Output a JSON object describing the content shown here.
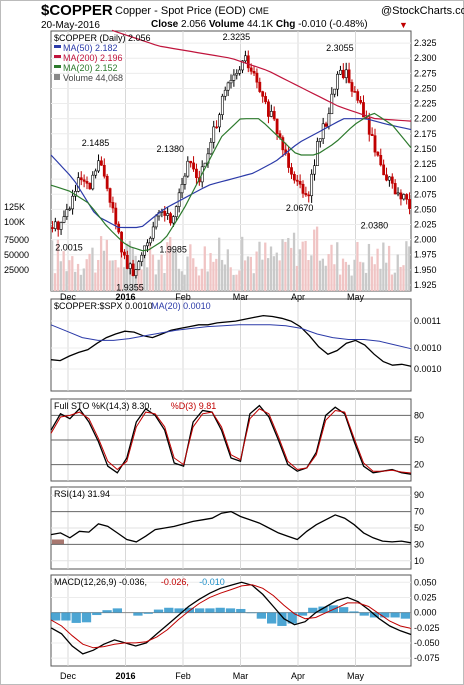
{
  "header": {
    "symbol": "$COPPER",
    "description": "Copper - Spot Price (EOD)",
    "exchange": "CME",
    "date": "20-May-2016",
    "close_label": "Close",
    "close": "2.056",
    "volume_label": "Volume",
    "volume": "44.1K",
    "chg_label": "Chg",
    "chg": "-0.010 (-0.48%)",
    "brand": "@StockCharts.com",
    "down_color": "#c00000"
  },
  "x_axis": {
    "months": [
      "Dec",
      "2016",
      "Feb",
      "Mar",
      "Apr",
      "May"
    ],
    "date_range": [
      "2015-11-24",
      "2016-05-20"
    ]
  },
  "chart_data": [
    {
      "type": "candlestick",
      "panel": "price",
      "legend": [
        {
          "label": "$COPPER (Daily) 2.056",
          "color": "#000000"
        },
        {
          "label": "MA(50) 2.182",
          "color": "#2b3aa8"
        },
        {
          "label": "MA(200) 2.196",
          "color": "#c0143c"
        },
        {
          "label": "MA(20) 2.152",
          "color": "#2d7a2d"
        },
        {
          "label": "Volume 44,068",
          "color": "#808080"
        }
      ],
      "y_ticks": [
        "2.325",
        "2.300",
        "2.275",
        "2.250",
        "2.225",
        "2.200",
        "2.175",
        "2.150",
        "2.125",
        "2.100",
        "2.075",
        "2.050",
        "2.025",
        "2.000",
        "1.975",
        "1.950",
        "1.925"
      ],
      "ylim": [
        1.915,
        2.345
      ],
      "volume_ticks": [
        "125K",
        "100K",
        "75000",
        "50000",
        "25000"
      ],
      "annotations": [
        {
          "text": "2.0015",
          "value": 2.0015,
          "month_pos": 0.1
        },
        {
          "text": "2.1485",
          "value": 2.1485,
          "month_pos": 1.0
        },
        {
          "text": "1.9355",
          "value": 1.9355,
          "month_pos": 1.6
        },
        {
          "text": "1.9985",
          "value": 1.9985,
          "month_pos": 2.35
        },
        {
          "text": "2.1380",
          "value": 2.138,
          "month_pos": 2.3
        },
        {
          "text": "2.3235",
          "value": 2.3235,
          "month_pos": 3.45
        },
        {
          "text": "2.0670",
          "value": 2.067,
          "month_pos": 4.55
        },
        {
          "text": "2.3055",
          "value": 2.3055,
          "month_pos": 5.25
        },
        {
          "text": "2.0380",
          "value": 2.038,
          "month_pos": 5.85
        }
      ],
      "close_key": [
        2.02,
        2.03,
        2.06,
        2.1,
        2.08,
        2.13,
        2.09,
        2.02,
        1.96,
        1.94,
        1.99,
        2.02,
        2.05,
        2.03,
        2.09,
        2.13,
        2.1,
        2.14,
        2.2,
        2.25,
        2.27,
        2.3,
        2.27,
        2.23,
        2.2,
        2.16,
        2.12,
        2.09,
        2.08,
        2.16,
        2.2,
        2.27,
        2.28,
        2.24,
        2.21,
        2.16,
        2.12,
        2.09,
        2.07,
        2.056
      ],
      "ma50_key": [
        2.14,
        2.1,
        2.04,
        2.02,
        2.02,
        2.05,
        2.07,
        2.09,
        2.1,
        2.11,
        2.13,
        2.16,
        2.18,
        2.2,
        2.2,
        2.19,
        2.182
      ],
      "ma200_key": [
        2.37,
        2.36,
        2.34,
        2.32,
        2.31,
        2.3,
        2.28,
        2.25,
        2.22,
        2.2,
        2.196
      ],
      "ma20_key": [
        2.09,
        2.08,
        2.06,
        2.02,
        1.99,
        1.98,
        2.0,
        2.05,
        2.11,
        2.17,
        2.2,
        2.2,
        2.17,
        2.14,
        2.14,
        2.16,
        2.19,
        2.21,
        2.19,
        2.152
      ]
    },
    {
      "type": "line",
      "panel": "ratio",
      "legend": [
        {
          "label": "$COPPER:$SPX 0.0010",
          "color": "#000000"
        },
        {
          "label": "MA(20) 0.0010",
          "color": "#2b3aa8"
        }
      ],
      "y_ticks": [
        "0.0011",
        "0.0010",
        "0.0010"
      ],
      "ylim": [
        0,
        100
      ],
      "series": [
        {
          "values": [
            34,
            33,
            38,
            42,
            45,
            52,
            58,
            62,
            65,
            64,
            60,
            58,
            62,
            66,
            68,
            70,
            72,
            72,
            74,
            75,
            76,
            78,
            80,
            82,
            81,
            79,
            76,
            70,
            60,
            48,
            40,
            44,
            52,
            55,
            50,
            40,
            32,
            28,
            29,
            27
          ]
        },
        {
          "values": [
            72,
            65,
            58,
            55,
            55,
            57,
            60,
            63,
            66,
            68,
            70,
            71,
            72,
            72,
            72,
            71,
            68,
            62,
            58,
            56,
            56,
            54,
            50,
            46
          ]
        }
      ]
    },
    {
      "type": "line",
      "panel": "stochastic",
      "legend": [
        {
          "label": "Full STO %K(14,3) 8.30,",
          "color": "#000000"
        },
        {
          "label": "%D(3) 9.81",
          "color": "#c00000"
        }
      ],
      "y_ticks": [
        "80",
        "50",
        "20"
      ],
      "ylim": [
        0,
        100
      ],
      "series": [
        {
          "values": [
            62,
            82,
            76,
            88,
            72,
            48,
            18,
            10,
            28,
            72,
            88,
            80,
            62,
            22,
            18,
            72,
            86,
            84,
            62,
            28,
            24,
            82,
            92,
            78,
            50,
            20,
            12,
            16,
            35,
            80,
            90,
            82,
            48,
            18,
            10,
            12,
            14,
            10,
            8.3
          ]
        },
        {
          "values": [
            58,
            78,
            80,
            84,
            76,
            52,
            24,
            14,
            24,
            66,
            84,
            82,
            66,
            28,
            20,
            66,
            82,
            84,
            66,
            32,
            26,
            76,
            88,
            82,
            54,
            24,
            14,
            16,
            32,
            74,
            86,
            84,
            52,
            22,
            12,
            12,
            13,
            11,
            9.81
          ]
        }
      ]
    },
    {
      "type": "line",
      "panel": "rsi",
      "legend": [
        {
          "label": "RSI(14) 31.94",
          "color": "#000000"
        }
      ],
      "y_ticks": [
        "90",
        "70",
        "50",
        "30",
        "10"
      ],
      "ylim": [
        0,
        100
      ],
      "series": [
        {
          "values": [
            42,
            44,
            38,
            46,
            45,
            55,
            52,
            44,
            36,
            33,
            40,
            48,
            50,
            52,
            55,
            58,
            60,
            62,
            68,
            70,
            64,
            60,
            56,
            50,
            44,
            40,
            36,
            46,
            54,
            60,
            66,
            62,
            54,
            44,
            38,
            34,
            33,
            34,
            31.94
          ]
        }
      ]
    },
    {
      "type": "line",
      "panel": "macd",
      "legend": [
        {
          "label": "MACD(12,26,9) -0.036,",
          "color": "#000000"
        },
        {
          "label": "-0.026,",
          "color": "#c00000"
        },
        {
          "label": "-0.010",
          "color": "#1f8fc8"
        }
      ],
      "y_ticks": [
        "0.050",
        "0.025",
        "0.000",
        "-0.025",
        "-0.050",
        "-0.075"
      ],
      "ylim": [
        -0.088,
        0.062
      ],
      "series": [
        {
          "values": [
            -0.025,
            -0.035,
            -0.055,
            -0.068,
            -0.062,
            -0.052,
            -0.045,
            -0.05,
            -0.055,
            -0.05,
            -0.035,
            -0.02,
            -0.005,
            0.01,
            0.022,
            0.032,
            0.04,
            0.045,
            0.05,
            0.045,
            0.03,
            0.01,
            -0.01,
            -0.02,
            -0.015,
            0.0,
            0.01,
            0.02,
            0.025,
            0.018,
            0.005,
            -0.01,
            -0.022,
            -0.03,
            -0.036
          ]
        },
        {
          "values": [
            -0.012,
            -0.022,
            -0.038,
            -0.052,
            -0.058,
            -0.056,
            -0.052,
            -0.05,
            -0.05,
            -0.048,
            -0.04,
            -0.028,
            -0.012,
            0.002,
            0.015,
            0.025,
            0.032,
            0.038,
            0.044,
            0.046,
            0.04,
            0.028,
            0.012,
            -0.002,
            -0.01,
            -0.008,
            0.0,
            0.008,
            0.016,
            0.016,
            0.01,
            -0.002,
            -0.014,
            -0.022,
            -0.026
          ]
        },
        {
          "values": [
            -0.013,
            -0.013,
            -0.017,
            -0.016,
            -0.004,
            0.004,
            0.007,
            0.0,
            -0.005,
            -0.002,
            0.005,
            0.008,
            0.007,
            0.008,
            0.007,
            0.007,
            0.008,
            0.007,
            0.006,
            -0.001,
            -0.01,
            -0.018,
            -0.022,
            -0.018,
            -0.005,
            0.008,
            0.01,
            0.012,
            0.009,
            0.002,
            -0.005,
            -0.008,
            -0.008,
            -0.008,
            -0.01
          ]
        }
      ]
    }
  ]
}
